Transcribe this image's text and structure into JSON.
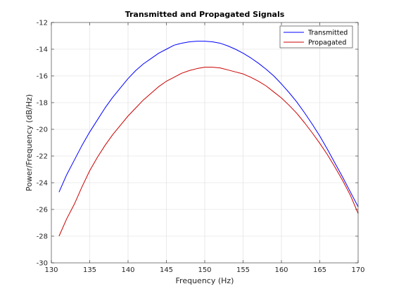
{
  "chart_data": {
    "type": "line",
    "title": "Transmitted and Propagated Signals",
    "xlabel": "Frequency (Hz)",
    "ylabel": "Power/Frequency (dB/Hz)",
    "xlim": [
      130,
      170
    ],
    "ylim": [
      -30,
      -12
    ],
    "xticks": [
      130,
      135,
      140,
      145,
      150,
      155,
      160,
      165,
      170
    ],
    "yticks": [
      -30,
      -28,
      -26,
      -24,
      -22,
      -20,
      -18,
      -16,
      -14,
      -12
    ],
    "grid": true,
    "legend_position": "top-right",
    "series": [
      {
        "name": "Transmitted",
        "color": "#0000ff",
        "x": [
          131,
          132,
          133,
          134,
          135,
          136,
          137,
          138,
          139,
          140,
          141,
          142,
          143,
          144,
          145,
          146,
          147,
          148,
          149,
          150,
          151,
          152,
          153,
          154,
          155,
          156,
          157,
          158,
          159,
          160,
          161,
          162,
          163,
          164,
          165,
          166,
          167,
          168,
          169,
          170
        ],
        "y": [
          -24.7,
          -23.4,
          -22.3,
          -21.2,
          -20.2,
          -19.3,
          -18.4,
          -17.6,
          -16.9,
          -16.2,
          -15.6,
          -15.1,
          -14.7,
          -14.3,
          -14.0,
          -13.7,
          -13.55,
          -13.45,
          -13.4,
          -13.4,
          -13.45,
          -13.55,
          -13.75,
          -14.0,
          -14.3,
          -14.65,
          -15.05,
          -15.5,
          -16.0,
          -16.6,
          -17.25,
          -17.95,
          -18.75,
          -19.6,
          -20.5,
          -21.5,
          -22.55,
          -23.6,
          -24.7,
          -25.8
        ]
      },
      {
        "name": "Propagated",
        "color": "#cc0000",
        "x": [
          131,
          132,
          133,
          134,
          135,
          136,
          137,
          138,
          139,
          140,
          141,
          142,
          143,
          144,
          145,
          146,
          147,
          148,
          149,
          150,
          151,
          152,
          153,
          154,
          155,
          156,
          157,
          158,
          159,
          160,
          161,
          162,
          163,
          164,
          165,
          166,
          167,
          168,
          169,
          170
        ],
        "y": [
          -28.0,
          -26.7,
          -25.6,
          -24.3,
          -23.1,
          -22.1,
          -21.2,
          -20.4,
          -19.7,
          -19.0,
          -18.4,
          -17.8,
          -17.3,
          -16.8,
          -16.4,
          -16.1,
          -15.8,
          -15.6,
          -15.45,
          -15.35,
          -15.35,
          -15.4,
          -15.55,
          -15.7,
          -15.85,
          -16.1,
          -16.4,
          -16.75,
          -17.2,
          -17.65,
          -18.2,
          -18.8,
          -19.5,
          -20.25,
          -21.05,
          -21.9,
          -22.85,
          -23.85,
          -24.95,
          -26.3
        ]
      }
    ]
  }
}
